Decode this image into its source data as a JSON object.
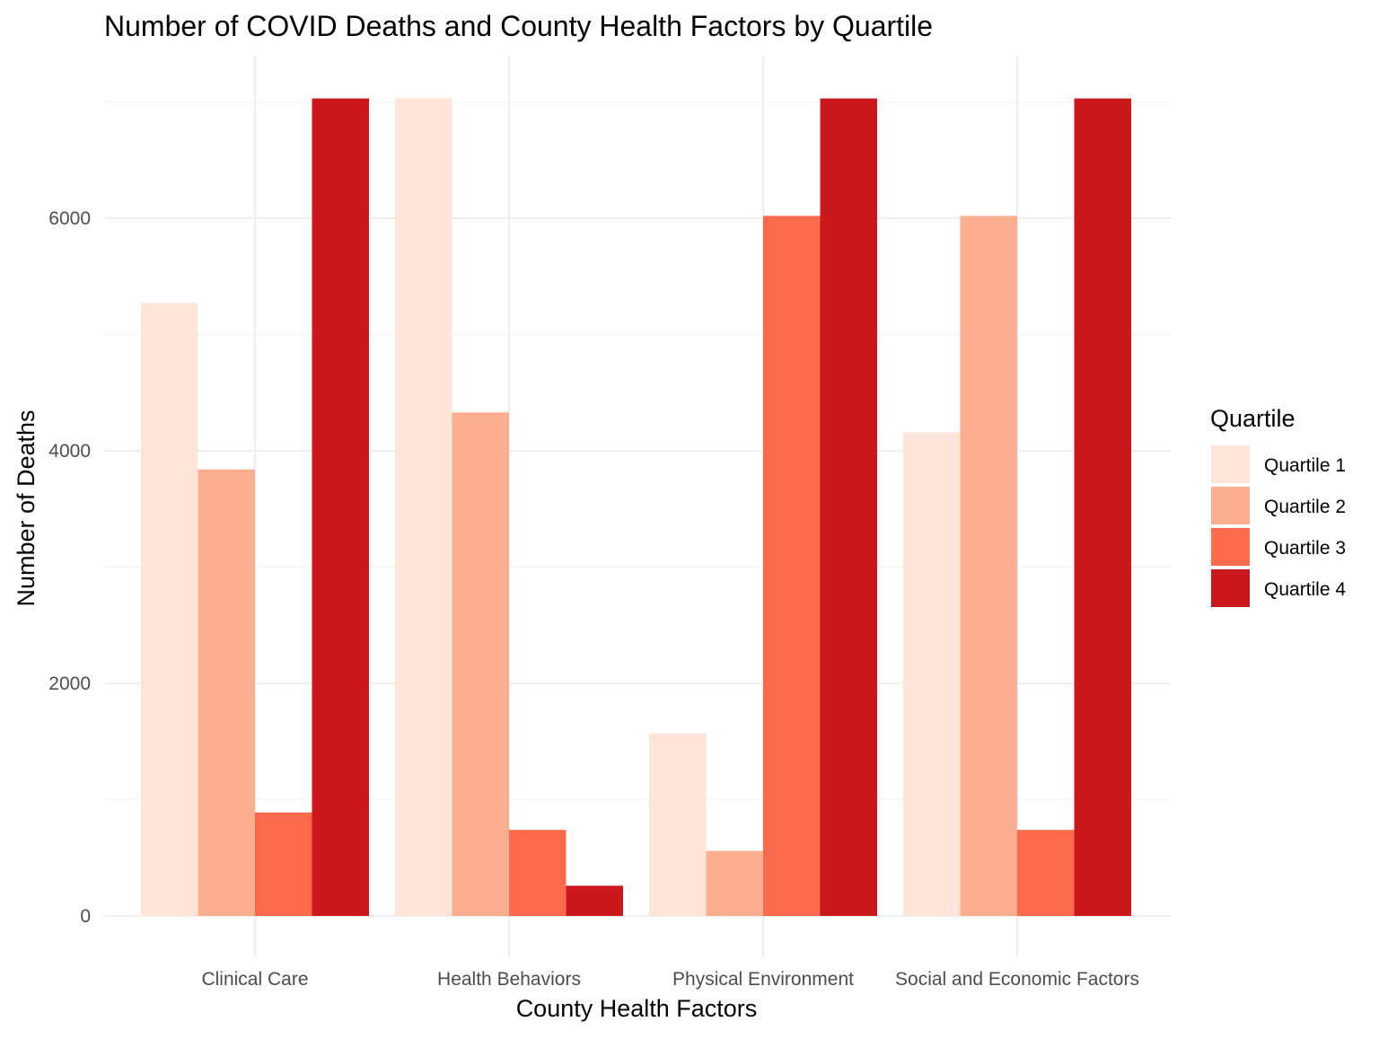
{
  "chart_data": {
    "type": "bar",
    "title": "Number of COVID Deaths and County Health Factors by Quartile",
    "xlabel": "County Health Factors",
    "ylabel": "Number of Deaths",
    "categories": [
      "Clinical Care",
      "Health Behaviors",
      "Physical Environment",
      "Social and Economic Factors"
    ],
    "series": [
      {
        "name": "Quartile 1",
        "color": "#FEE5D9",
        "values": [
          5270,
          7030,
          1570,
          4160
        ]
      },
      {
        "name": "Quartile 2",
        "color": "#FCAE91",
        "values": [
          3840,
          4330,
          560,
          6020
        ]
      },
      {
        "name": "Quartile 3",
        "color": "#FB6A4A",
        "values": [
          890,
          740,
          6020,
          740
        ]
      },
      {
        "name": "Quartile 4",
        "color": "#CB181D",
        "values": [
          7030,
          260,
          7030,
          7030
        ]
      }
    ],
    "ylim": [
      -350,
      7450
    ],
    "yticks": [
      0,
      2000,
      4000,
      6000
    ],
    "grid": true,
    "legend": {
      "title": "Quartile",
      "position": "right"
    }
  }
}
